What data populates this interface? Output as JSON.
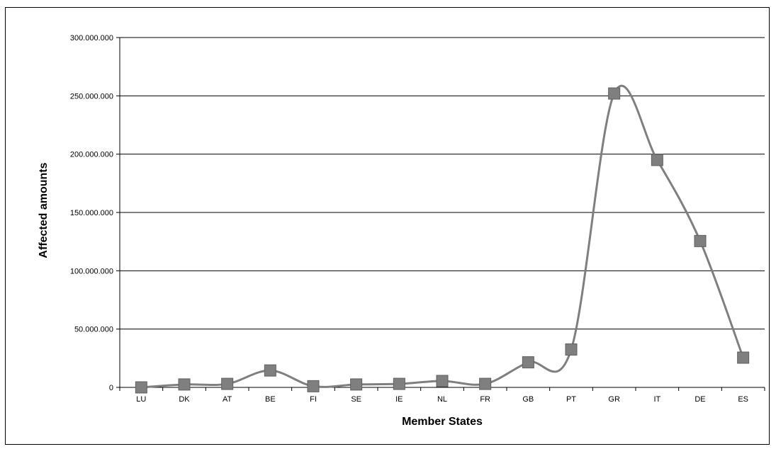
{
  "chart_data": {
    "type": "line",
    "title": "",
    "xlabel": "Member States",
    "ylabel": "Affected amounts",
    "ylim": [
      0,
      300000000
    ],
    "y_ticks": [
      0,
      50000000,
      100000000,
      150000000,
      200000000,
      250000000,
      300000000
    ],
    "y_tick_labels": [
      "0",
      "50.000.000",
      "100.000.000",
      "150.000.000",
      "200.000.000",
      "250.000.000",
      "300.000.000"
    ],
    "grid": true,
    "smooth": true,
    "series_color": "#7f7f7f",
    "categories": [
      "LU",
      "DK",
      "AT",
      "BE",
      "FI",
      "SE",
      "IE",
      "NL",
      "FR",
      "GB",
      "PT",
      "GR",
      "IT",
      "DE",
      "ES"
    ],
    "series": [
      {
        "values": [
          0,
          2500000,
          3000000,
          14500000,
          1000000,
          2500000,
          3000000,
          5500000,
          3000000,
          21500000,
          32500000,
          252000000,
          195000000,
          125500000,
          25500000
        ]
      }
    ]
  }
}
